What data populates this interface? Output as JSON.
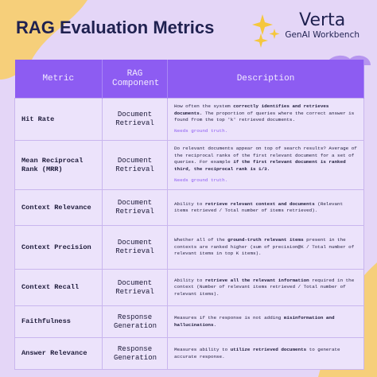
{
  "header": {
    "title": "RAG Evaluation Metrics",
    "brand": "Verta",
    "product": "GenAI Workbench"
  },
  "table": {
    "columns": [
      "Metric",
      "RAG Component",
      "Description"
    ],
    "rows": [
      {
        "metric": "Hit Rate",
        "component": "Document Retrieval",
        "description": [
          {
            "text": "How often the system "
          },
          {
            "text": "correctly identifies and retrieves documents.",
            "bold": true
          },
          {
            "text": " The proportion of queries where the correct answer is found from the top 'k' retrieved documents."
          }
        ],
        "note": "Needs ground truth."
      },
      {
        "metric": "Mean Reciprocal Rank (MRR)",
        "component": "Document Retrieval",
        "description": [
          {
            "text": "Do relevant documents appear on top of search results? Average of the reciprocal ranks of the first relevant document for a set of queries. For example "
          },
          {
            "text": "if the first relevant document is ranked third, the reciprocal rank is 1/3.",
            "bold": true
          }
        ],
        "note": "Needs ground truth."
      },
      {
        "metric": "Context Relevance",
        "component": "Document Retrieval",
        "description": [
          {
            "text": "Ability to "
          },
          {
            "text": "retrieve relevant context and documents",
            "bold": true
          },
          {
            "text": " (Relevant items retrieved / Total number of items retrieved)."
          }
        ]
      },
      {
        "metric": "Context Precision",
        "component": "Document Retrieval",
        "description": [
          {
            "text": "Whether all of the "
          },
          {
            "text": "ground-truth relevant items",
            "bold": true
          },
          {
            "text": " present in the contexts are ranked higher (sum of precision@K / Total number of relevant items in top K items)."
          }
        ]
      },
      {
        "metric": "Context Recall",
        "component": "Document Retrieval",
        "description": [
          {
            "text": "Ability to "
          },
          {
            "text": "retrieve all the relevant information",
            "bold": true
          },
          {
            "text": " required in the context (Number of relevant items retrieved / Total number of relevant items)."
          }
        ]
      },
      {
        "metric": "Faithfulness",
        "component": "Response Generation",
        "description": [
          {
            "text": "Measures if the response is not adding "
          },
          {
            "text": "misinformation and hallucinations",
            "bold": true
          },
          {
            "text": "."
          }
        ]
      },
      {
        "metric": "Answer Relevance",
        "component": "Response Generation",
        "description": [
          {
            "text": "Measures ability to "
          },
          {
            "text": "utilize retrieved documents",
            "bold": true
          },
          {
            "text": " to generate accurate response."
          }
        ]
      }
    ]
  }
}
